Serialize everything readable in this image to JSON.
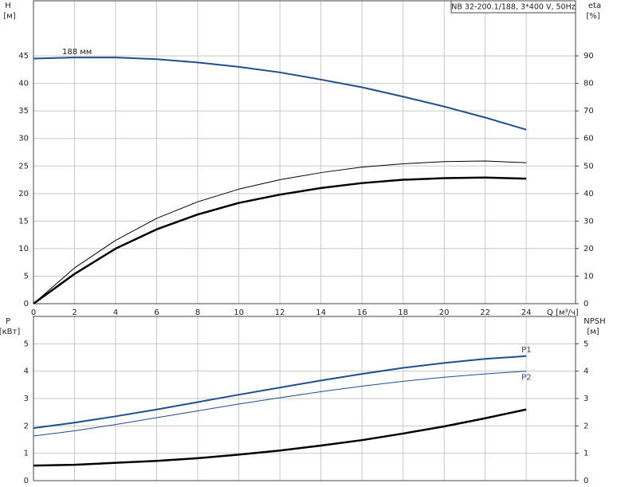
{
  "chart_data": [
    {
      "type": "line",
      "title": "NB 32-200.1/188, 3*400 V, 50Hz",
      "y_label": "H",
      "y_unit": "[м]",
      "y2_label": "eta",
      "y2_unit": "[%]",
      "x_label": "Q [м³/ч]",
      "annotation": "188 мм",
      "x": [
        0,
        2,
        4,
        6,
        8,
        10,
        12,
        14,
        16,
        18,
        20,
        22,
        24
      ],
      "xlim": [
        0,
        26.4
      ],
      "xticks": [
        0,
        2,
        4,
        6,
        8,
        10,
        12,
        14,
        16,
        18,
        20,
        22,
        24
      ],
      "ylim": [
        0,
        55
      ],
      "yticks": [
        0,
        5,
        10,
        15,
        20,
        25,
        30,
        35,
        40,
        45
      ],
      "y2lim": [
        0,
        110
      ],
      "y2ticks": [
        0,
        10,
        20,
        30,
        40,
        50,
        60,
        70,
        80,
        90
      ],
      "grid": true,
      "series": [
        {
          "color": "#1f4e8c",
          "linewidth": 2,
          "values": [
            44.5,
            44.7,
            44.7,
            44.4,
            43.8,
            43.0,
            42.0,
            40.7,
            39.3,
            37.6,
            35.8,
            33.8,
            31.6
          ]
        },
        {
          "color": "#000000",
          "linewidth": 1,
          "axis": "y2",
          "values": [
            0,
            13,
            23,
            31,
            37,
            41.6,
            45,
            47.6,
            49.6,
            50.8,
            51.6,
            51.8,
            51.2
          ]
        },
        {
          "color": "#000000",
          "linewidth": 2.5,
          "axis": "y2",
          "values": [
            0,
            10.8,
            20,
            27,
            32.4,
            36.6,
            39.6,
            42,
            43.8,
            45,
            45.6,
            45.8,
            45.4
          ]
        }
      ]
    },
    {
      "type": "line",
      "y_label": "P",
      "y_unit": "[кВт]",
      "y2_label": "NPSH",
      "y2_unit": "[м]",
      "x": [
        0,
        2,
        4,
        6,
        8,
        10,
        12,
        14,
        16,
        18,
        20,
        22,
        24
      ],
      "xlim": [
        0,
        26.4
      ],
      "ylim": [
        0,
        6
      ],
      "yticks": [
        0,
        1,
        2,
        3,
        4,
        5
      ],
      "y2lim": [
        0,
        6
      ],
      "y2ticks": [
        0,
        1,
        2,
        3,
        4,
        5
      ],
      "grid": true,
      "series": [
        {
          "name": "P1",
          "color": "#1f4e8c",
          "linewidth": 2,
          "values": [
            1.92,
            2.12,
            2.35,
            2.6,
            2.87,
            3.14,
            3.4,
            3.66,
            3.9,
            4.12,
            4.3,
            4.45,
            4.55
          ]
        },
        {
          "name": "P2",
          "color": "#1f4e8c",
          "linewidth": 1,
          "values": [
            1.63,
            1.82,
            2.05,
            2.3,
            2.55,
            2.8,
            3.03,
            3.25,
            3.45,
            3.63,
            3.78,
            3.9,
            4.0
          ]
        },
        {
          "color": "#000000",
          "linewidth": 2.5,
          "axis": "y2",
          "values": [
            0.55,
            0.58,
            0.65,
            0.72,
            0.82,
            0.95,
            1.1,
            1.28,
            1.48,
            1.72,
            1.98,
            2.28,
            2.6
          ]
        }
      ]
    }
  ]
}
